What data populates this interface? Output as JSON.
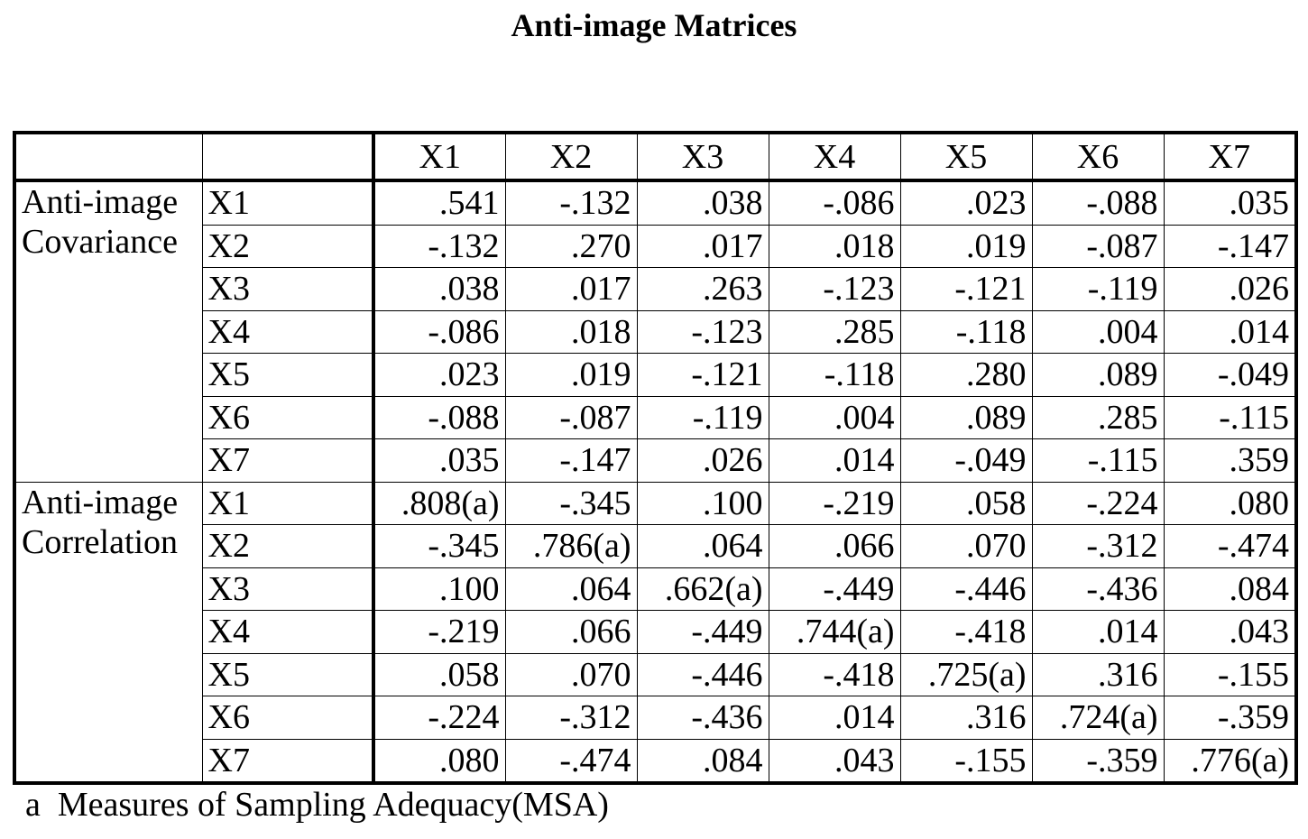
{
  "title": "Anti-image Matrices",
  "columns": [
    "X1",
    "X2",
    "X3",
    "X4",
    "X5",
    "X6",
    "X7"
  ],
  "groups": [
    {
      "label_line1": "Anti-image",
      "label_line2": "Covariance",
      "rows": [
        {
          "label": "X1",
          "values": [
            ".541",
            "-.132",
            ".038",
            "-.086",
            ".023",
            "-.088",
            ".035"
          ]
        },
        {
          "label": "X2",
          "values": [
            "-.132",
            ".270",
            ".017",
            ".018",
            ".019",
            "-.087",
            "-.147"
          ]
        },
        {
          "label": "X3",
          "values": [
            ".038",
            ".017",
            ".263",
            "-.123",
            "-.121",
            "-.119",
            ".026"
          ]
        },
        {
          "label": "X4",
          "values": [
            "-.086",
            ".018",
            "-.123",
            ".285",
            "-.118",
            ".004",
            ".014"
          ]
        },
        {
          "label": "X5",
          "values": [
            ".023",
            ".019",
            "-.121",
            "-.118",
            ".280",
            ".089",
            "-.049"
          ]
        },
        {
          "label": "X6",
          "values": [
            "-.088",
            "-.087",
            "-.119",
            ".004",
            ".089",
            ".285",
            "-.115"
          ]
        },
        {
          "label": "X7",
          "values": [
            ".035",
            "-.147",
            ".026",
            ".014",
            "-.049",
            "-.115",
            ".359"
          ]
        }
      ]
    },
    {
      "label_line1": "Anti-image",
      "label_line2": "Correlation",
      "rows": [
        {
          "label": "X1",
          "values": [
            ".808(a)",
            "-.345",
            ".100",
            "-.219",
            ".058",
            "-.224",
            ".080"
          ]
        },
        {
          "label": "X2",
          "values": [
            "-.345",
            ".786(a)",
            ".064",
            ".066",
            ".070",
            "-.312",
            "-.474"
          ]
        },
        {
          "label": "X3",
          "values": [
            ".100",
            ".064",
            ".662(a)",
            "-.449",
            "-.446",
            "-.436",
            ".084"
          ]
        },
        {
          "label": "X4",
          "values": [
            "-.219",
            ".066",
            "-.449",
            ".744(a)",
            "-.418",
            ".014",
            ".043"
          ]
        },
        {
          "label": "X5",
          "values": [
            ".058",
            ".070",
            "-.446",
            "-.418",
            ".725(a)",
            ".316",
            "-.155"
          ]
        },
        {
          "label": "X6",
          "values": [
            "-.224",
            "-.312",
            "-.436",
            ".014",
            ".316",
            ".724(a)",
            "-.359"
          ]
        },
        {
          "label": "X7",
          "values": [
            ".080",
            "-.474",
            ".084",
            ".043",
            "-.155",
            "-.359",
            ".776(a)"
          ]
        }
      ]
    }
  ],
  "footnote": "a  Measures of Sampling Adequacy(MSA)"
}
